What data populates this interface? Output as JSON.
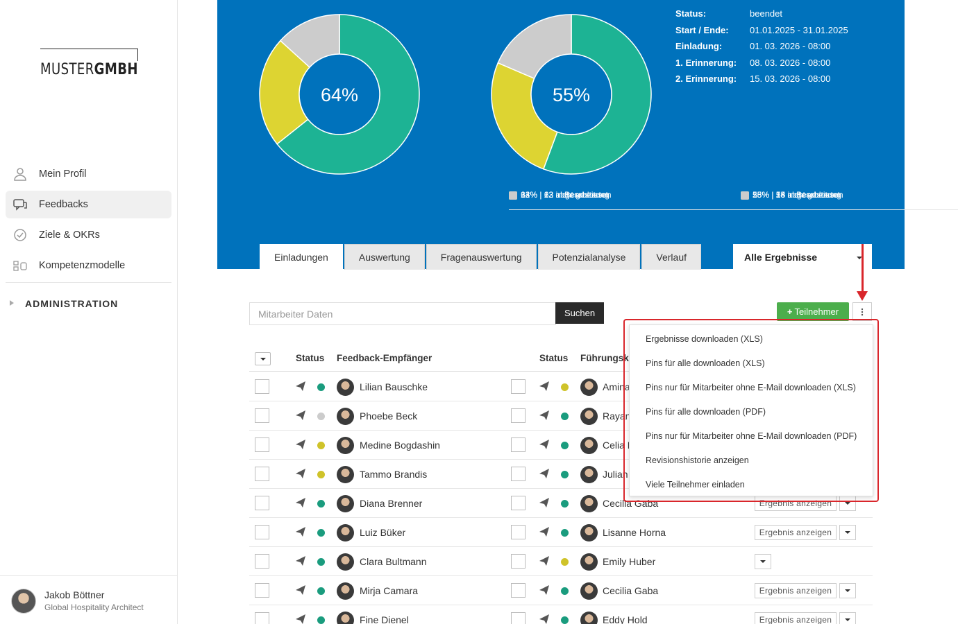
{
  "sidebar": {
    "logo_light": "MUSTER",
    "logo_bold": "GMBH",
    "items": [
      {
        "label": "Mein Profil",
        "icon": "user-icon"
      },
      {
        "label": "Feedbacks",
        "icon": "chat-icon"
      },
      {
        "label": "Ziele & OKRs",
        "icon": "check-circle-icon"
      },
      {
        "label": "Kompetenzmodelle",
        "icon": "model-icon"
      }
    ],
    "admin_label": "ADMINISTRATION",
    "user": {
      "name": "Jakob Böttner",
      "role": "Global Hospitality Architect"
    }
  },
  "banner": {
    "charts": [
      {
        "center": "64%",
        "legend": [
          "64% | 63 abgeschlossen",
          "22% | 22 in Bearbeitung",
          "13% | 13 nicht gestartet"
        ]
      },
      {
        "center": "55%",
        "legend": [
          "55% | 54 abgeschlossen",
          "25% | 25 in Bearbeitung",
          "18% | 18 nicht gestartet"
        ]
      }
    ],
    "info": [
      {
        "key": "Status:",
        "value": "beendet"
      },
      {
        "key": "Start / Ende:",
        "value": "01.01.2025 - 31.01.2025"
      },
      {
        "key": "Einladung:",
        "value": "01. 03. 2026 - 08:00"
      },
      {
        "key": "1. Erinnerung:",
        "value": "08. 03. 2026 - 08:00"
      },
      {
        "key": "2. Erinnerung:",
        "value": "15. 03. 2026 - 08:00"
      }
    ]
  },
  "chart_data": [
    {
      "type": "pie",
      "categories": [
        "abgeschlossen",
        "in Bearbeitung",
        "nicht gestartet"
      ],
      "values": [
        63,
        22,
        13
      ],
      "center_label": "64%"
    },
    {
      "type": "pie",
      "categories": [
        "abgeschlossen",
        "in Bearbeitung",
        "nicht gestartet"
      ],
      "values": [
        54,
        25,
        18
      ],
      "center_label": "55%"
    }
  ],
  "colors": {
    "completed": "#1db394",
    "in_progress": "#ddd432",
    "not_started": "#cccccc",
    "banner": "#0072bc",
    "highlight": "#d9262b",
    "add": "#4cae4c"
  },
  "tabs": [
    "Einladungen",
    "Auswertung",
    "Fragenauswertung",
    "Potenzialanalyse",
    "Verlauf"
  ],
  "filter_label": "Alle Ergebnisse",
  "search": {
    "placeholder": "Mitarbeiter Daten",
    "button": "Suchen"
  },
  "add_button": "Teilnehmer",
  "table": {
    "headers": {
      "status1": "Status",
      "recipient": "Feedback-Empfänger",
      "status2": "Status",
      "leader": "Führungsk"
    },
    "result_label": "Ergebnis anzeigen",
    "rows": [
      {
        "recipient": "Lilian Bauschke",
        "r_status": "green",
        "leader": "Amina",
        "l_status": "yellow",
        "result": false,
        "dd": false
      },
      {
        "recipient": "Phoebe Beck",
        "r_status": "gray",
        "leader": "Rayan",
        "l_status": "green",
        "result": false,
        "dd": false
      },
      {
        "recipient": "Medine Bogdashin",
        "r_status": "yellow",
        "leader": "Celia M",
        "l_status": "green",
        "result": false,
        "dd": false
      },
      {
        "recipient": "Tammo Brandis",
        "r_status": "yellow",
        "leader": "Julian S",
        "l_status": "green",
        "result": false,
        "dd": false
      },
      {
        "recipient": "Diana Brenner",
        "r_status": "green",
        "leader": "Cecilia Gaba",
        "l_status": "green",
        "result": true,
        "dd": true
      },
      {
        "recipient": "Luiz Büker",
        "r_status": "green",
        "leader": "Lisanne Horna",
        "l_status": "green",
        "result": true,
        "dd": true
      },
      {
        "recipient": "Clara Bultmann",
        "r_status": "green",
        "leader": "Emily Huber",
        "l_status": "yellow",
        "result": false,
        "dd": true
      },
      {
        "recipient": "Mirja Camara",
        "r_status": "green",
        "leader": "Cecilia Gaba",
        "l_status": "green",
        "result": true,
        "dd": true
      },
      {
        "recipient": "Fine Dienel",
        "r_status": "green",
        "leader": "Eddy Hold",
        "l_status": "green",
        "result": true,
        "dd": true
      }
    ]
  },
  "menu": [
    "Ergebnisse downloaden (XLS)",
    "Pins für alle downloaden (XLS)",
    "Pins nur für Mitarbeiter ohne E-Mail downloaden (XLS)",
    "Pins für alle downloaden (PDF)",
    "Pins nur für Mitarbeiter ohne E-Mail downloaden (PDF)",
    "Revisionshistorie anzeigen",
    "Viele Teilnehmer einladen"
  ]
}
